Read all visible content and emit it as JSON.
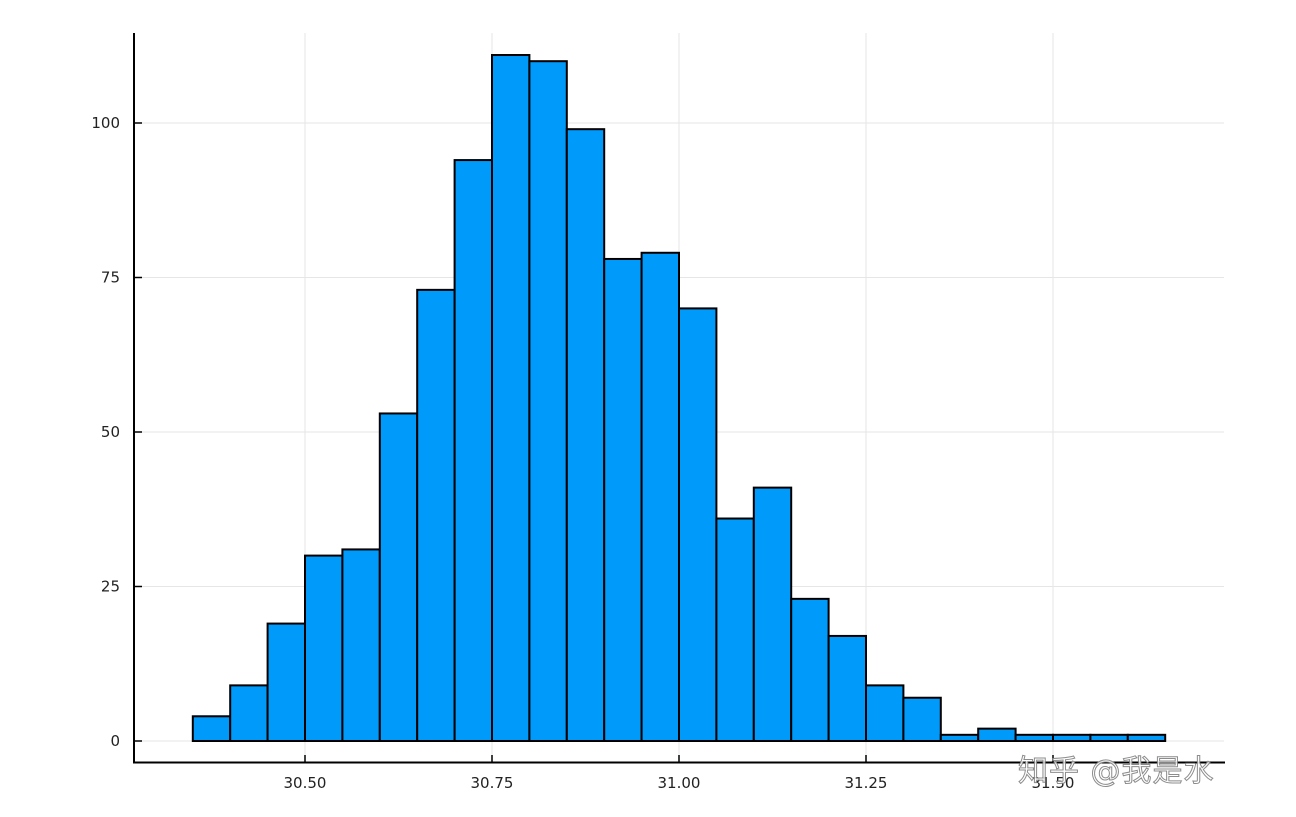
{
  "chart_data": {
    "type": "bar",
    "subtype": "histogram",
    "title": "",
    "xlabel": "",
    "ylabel": "",
    "bin_start": 30.35,
    "bin_width": 0.05,
    "bin_edges": [
      30.35,
      30.4,
      30.45,
      30.5,
      30.55,
      30.6,
      30.65,
      30.7,
      30.75,
      30.8,
      30.85,
      30.9,
      30.95,
      31.0,
      31.05,
      31.1,
      31.15,
      31.2,
      31.25,
      31.3,
      31.35,
      31.4,
      31.45,
      31.5,
      31.55,
      31.6,
      31.65
    ],
    "values": [
      4,
      9,
      19,
      30,
      31,
      53,
      73,
      94,
      111,
      110,
      99,
      78,
      79,
      70,
      36,
      41,
      23,
      17,
      9,
      7,
      1,
      2,
      1,
      1,
      1,
      1
    ],
    "xticks": [
      30.5,
      30.75,
      31.0,
      31.25,
      31.5
    ],
    "xtick_labels": [
      "30.50",
      "30.75",
      "31.00",
      "31.25",
      "31.50"
    ],
    "yticks": [
      0,
      25,
      50,
      75,
      100
    ],
    "ytick_labels": [
      "0",
      "25",
      "50",
      "75",
      "100"
    ],
    "xlim": [
      30.27,
      31.73
    ],
    "ylim": [
      -3.4,
      114.5
    ],
    "grid": true,
    "legend": null,
    "colors": {
      "bar_fill": "#009AFA",
      "bar_edge": "#000000",
      "grid": "#E6E6E6",
      "axis": "#000000"
    }
  },
  "watermark": {
    "text": "知乎 @我是水"
  }
}
